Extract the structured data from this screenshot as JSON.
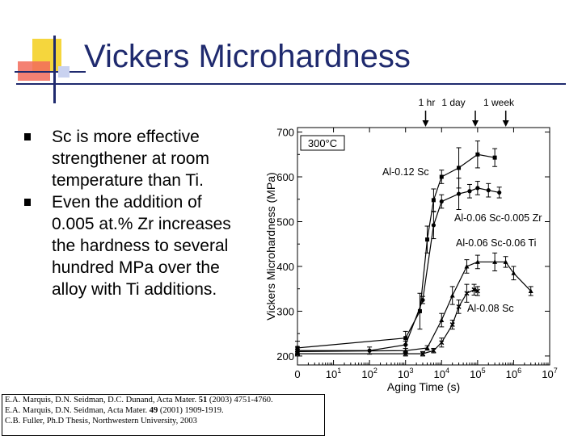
{
  "slide": {
    "title": "Vickers Microhardness",
    "bullets": [
      "Sc is more effective strengthener at room temperature than Ti.",
      "Even the addition of 0.005 at.% Zr increases the hardness to several hundred MPa over the alloy with Ti additions."
    ],
    "citations": [
      [
        {
          "t": "E.A. Marquis, D.N. Seidman, D.C. Dunand, Acta Mater. "
        },
        {
          "t": "51",
          "b": true
        },
        {
          "t": " (2003) 4751-4760."
        }
      ],
      [
        {
          "t": "E.A. Marquis, D.N. Seidman, Acta Mater. "
        },
        {
          "t": "49",
          "b": true
        },
        {
          "t": " (2001) 1909-1919."
        }
      ],
      [
        {
          "t": "C.B. Fuller, Ph.D Thesis, Northwestern University, 2003"
        }
      ]
    ],
    "colors": {
      "title": "#1f2a6e",
      "accent_yellow": "#f5d63d",
      "accent_red": "#e8503a",
      "accent_blue": "#1f2a6e"
    }
  },
  "chart_data": {
    "type": "scatter",
    "title": "",
    "xlabel": "Aging Time (s)",
    "ylabel": "Vickers Microhardness (MPa)",
    "x_scale": "log",
    "xlim": [
      1,
      10000000
    ],
    "ylim": [
      180,
      710
    ],
    "x_ticks": [
      {
        "v": 1,
        "base": "0",
        "exp": ""
      },
      {
        "v": 10,
        "base": "10",
        "exp": "1"
      },
      {
        "v": 100,
        "base": "10",
        "exp": "2"
      },
      {
        "v": 1000,
        "base": "10",
        "exp": "3"
      },
      {
        "v": 10000,
        "base": "10",
        "exp": "4"
      },
      {
        "v": 100000,
        "base": "10",
        "exp": "5"
      },
      {
        "v": 1000000,
        "base": "10",
        "exp": "6"
      },
      {
        "v": 10000000,
        "base": "10",
        "exp": "7"
      }
    ],
    "y_ticks": [
      200,
      300,
      400,
      500,
      600,
      700
    ],
    "temperature_label": "300°C",
    "time_markers": [
      {
        "label": "1 hr",
        "x": 3600
      },
      {
        "label": "1 day",
        "x": 86400
      },
      {
        "label": "1 week",
        "x": 604800
      }
    ],
    "series": [
      {
        "name": "Al-0.12 Sc",
        "marker": "square",
        "x": [
          1,
          1000,
          2500,
          4000,
          6000,
          10000,
          30000,
          100000,
          300000
        ],
        "y": [
          218,
          240,
          300,
          460,
          548,
          600,
          620,
          650,
          643
        ],
        "err": [
          15,
          15,
          40,
          30,
          25,
          15,
          45,
          30,
          20
        ]
      },
      {
        "name": "Al-0.06 Sc-0.005 Zr",
        "marker": "circle",
        "x": [
          1,
          100,
          1000,
          3000,
          6000,
          10000,
          30000,
          60000,
          100000,
          200000,
          400000
        ],
        "y": [
          212,
          212,
          225,
          325,
          492,
          545,
          562,
          568,
          575,
          570,
          565
        ],
        "err": [
          8,
          8,
          8,
          8,
          30,
          15,
          35,
          15,
          15,
          15,
          12
        ]
      },
      {
        "name": "Al-0.06 Sc-0.06 Ti",
        "marker": "triangle",
        "x": [
          1,
          1000,
          4000,
          10000,
          20000,
          50000,
          100000,
          300000,
          600000,
          1000000,
          3000000
        ],
        "y": [
          210,
          212,
          218,
          280,
          335,
          400,
          410,
          410,
          410,
          385,
          345
        ],
        "err": [
          5,
          5,
          5,
          15,
          20,
          15,
          15,
          20,
          12,
          15,
          10
        ]
      },
      {
        "name": "Al-0.08 Sc",
        "marker": "cross",
        "x": [
          1,
          1000,
          3000,
          6000,
          10000,
          20000,
          30000,
          50000,
          80000,
          100000
        ],
        "y": [
          205,
          205,
          205,
          212,
          230,
          270,
          310,
          340,
          348,
          345
        ],
        "err": [
          5,
          5,
          5,
          5,
          10,
          10,
          15,
          20,
          12,
          10
        ]
      }
    ]
  }
}
